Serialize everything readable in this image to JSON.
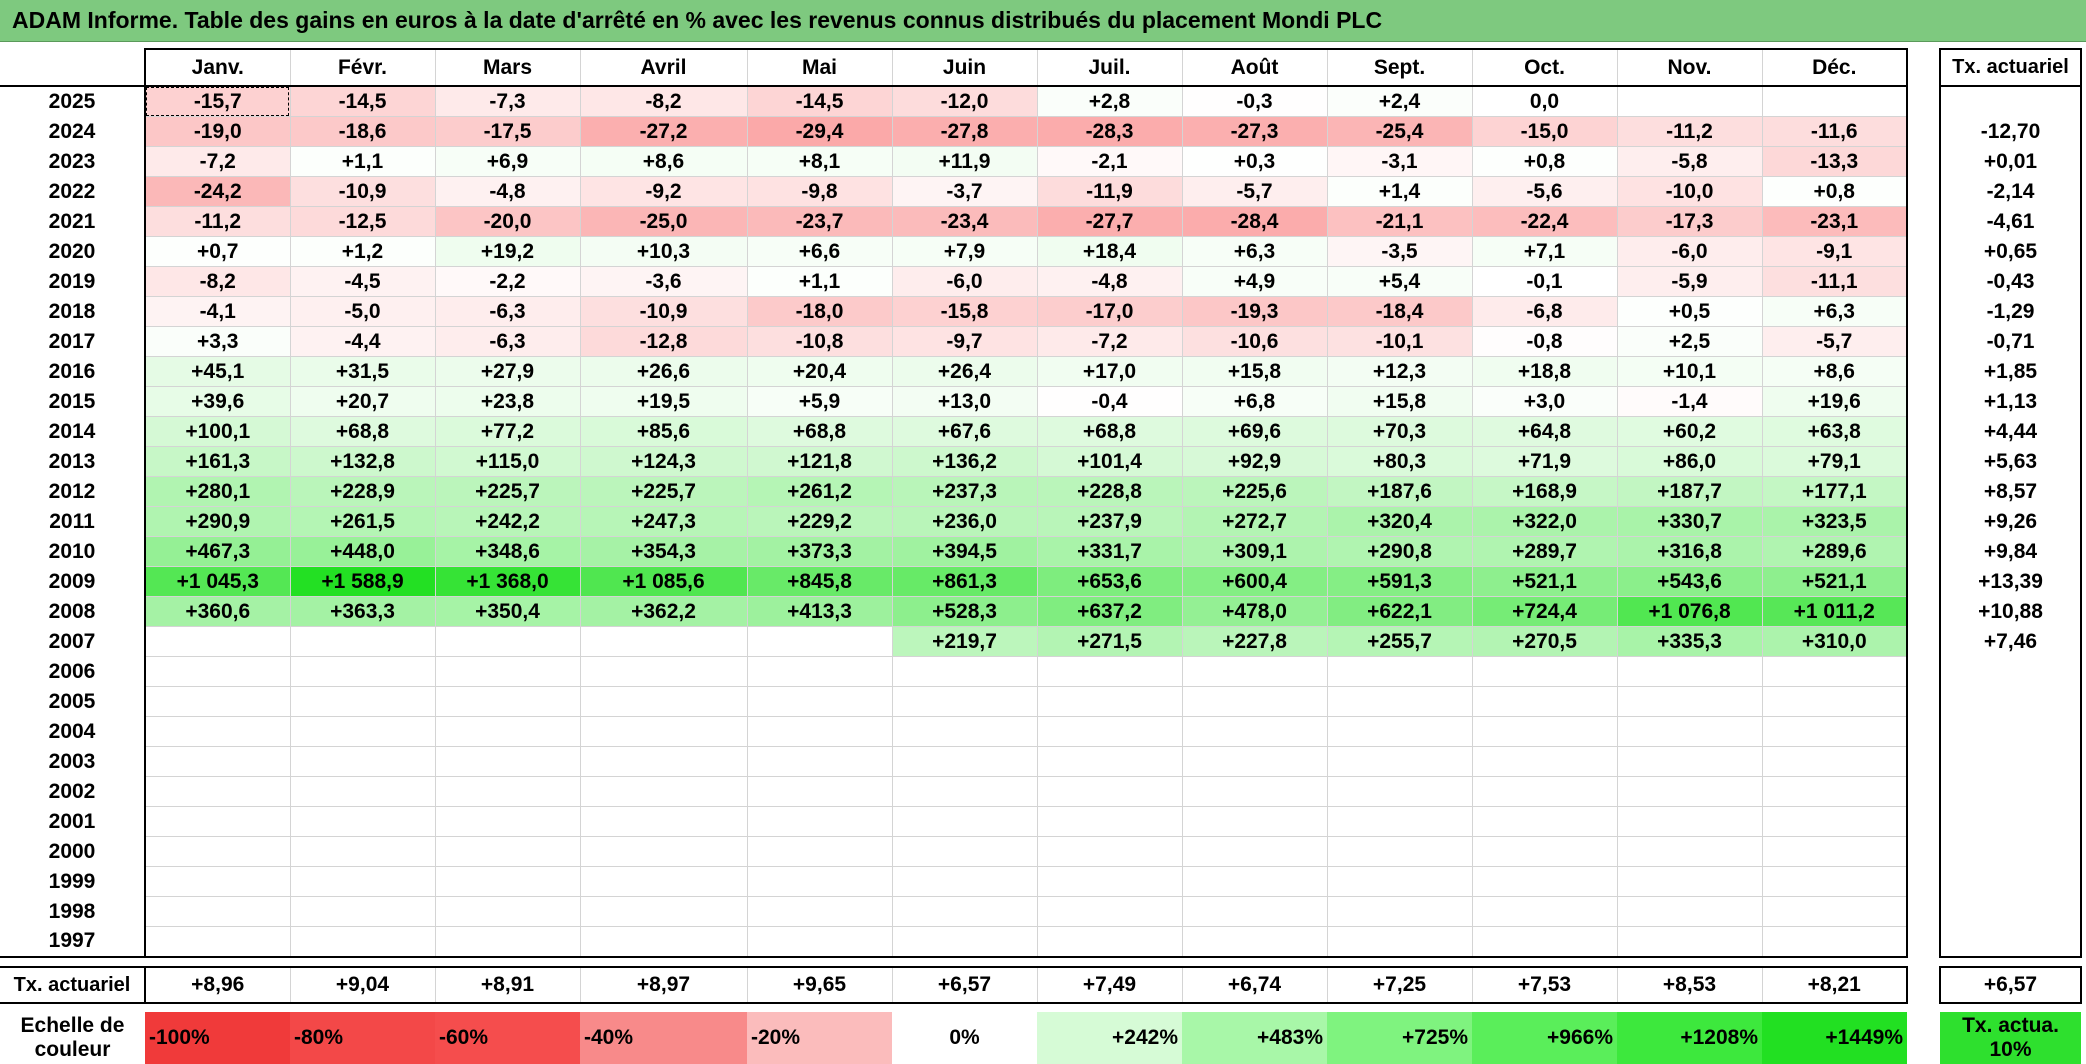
{
  "title": "ADAM Informe. Table des gains en euros à la date d'arrêté en % avec les revenus connus distribués du placement Mondi PLC",
  "months": [
    "Janv.",
    "Févr.",
    "Mars",
    "Avril",
    "Mai",
    "Juin",
    "Juil.",
    "Août",
    "Sept.",
    "Oct.",
    "Nov.",
    "Déc."
  ],
  "annual_header": "Tx. actuariel",
  "rows": [
    {
      "year": "2025",
      "cells": [
        "-15,7",
        "-14,5",
        "-7,3",
        "-8,2",
        "-14,5",
        "-12,0",
        "+2,8",
        "-0,3",
        "+2,4",
        "0,0",
        "",
        ""
      ],
      "annual": ""
    },
    {
      "year": "2024",
      "cells": [
        "-19,0",
        "-18,6",
        "-17,5",
        "-27,2",
        "-29,4",
        "-27,8",
        "-28,3",
        "-27,3",
        "-25,4",
        "-15,0",
        "-11,2",
        "-11,6"
      ],
      "annual": "-12,70"
    },
    {
      "year": "2023",
      "cells": [
        "-7,2",
        "+1,1",
        "+6,9",
        "+8,6",
        "+8,1",
        "+11,9",
        "-2,1",
        "+0,3",
        "-3,1",
        "+0,8",
        "-5,8",
        "-13,3"
      ],
      "annual": "+0,01"
    },
    {
      "year": "2022",
      "cells": [
        "-24,2",
        "-10,9",
        "-4,8",
        "-9,2",
        "-9,8",
        "-3,7",
        "-11,9",
        "-5,7",
        "+1,4",
        "-5,6",
        "-10,0",
        "+0,8"
      ],
      "annual": "-2,14"
    },
    {
      "year": "2021",
      "cells": [
        "-11,2",
        "-12,5",
        "-20,0",
        "-25,0",
        "-23,7",
        "-23,4",
        "-27,7",
        "-28,4",
        "-21,1",
        "-22,4",
        "-17,3",
        "-23,1"
      ],
      "annual": "-4,61"
    },
    {
      "year": "2020",
      "cells": [
        "+0,7",
        "+1,2",
        "+19,2",
        "+10,3",
        "+6,6",
        "+7,9",
        "+18,4",
        "+6,3",
        "-3,5",
        "+7,1",
        "-6,0",
        "-9,1"
      ],
      "annual": "+0,65"
    },
    {
      "year": "2019",
      "cells": [
        "-8,2",
        "-4,5",
        "-2,2",
        "-3,6",
        "+1,1",
        "-6,0",
        "-4,8",
        "+4,9",
        "+5,4",
        "-0,1",
        "-5,9",
        "-11,1"
      ],
      "annual": "-0,43"
    },
    {
      "year": "2018",
      "cells": [
        "-4,1",
        "-5,0",
        "-6,3",
        "-10,9",
        "-18,0",
        "-15,8",
        "-17,0",
        "-19,3",
        "-18,4",
        "-6,8",
        "+0,5",
        "+6,3"
      ],
      "annual": "-1,29"
    },
    {
      "year": "2017",
      "cells": [
        "+3,3",
        "-4,4",
        "-6,3",
        "-12,8",
        "-10,8",
        "-9,7",
        "-7,2",
        "-10,6",
        "-10,1",
        "-0,8",
        "+2,5",
        "-5,7"
      ],
      "annual": "-0,71"
    },
    {
      "year": "2016",
      "cells": [
        "+45,1",
        "+31,5",
        "+27,9",
        "+26,6",
        "+20,4",
        "+26,4",
        "+17,0",
        "+15,8",
        "+12,3",
        "+18,8",
        "+10,1",
        "+8,6"
      ],
      "annual": "+1,85"
    },
    {
      "year": "2015",
      "cells": [
        "+39,6",
        "+20,7",
        "+23,8",
        "+19,5",
        "+5,9",
        "+13,0",
        "-0,4",
        "+6,8",
        "+15,8",
        "+3,0",
        "-1,4",
        "+19,6"
      ],
      "annual": "+1,13"
    },
    {
      "year": "2014",
      "cells": [
        "+100,1",
        "+68,8",
        "+77,2",
        "+85,6",
        "+68,8",
        "+67,6",
        "+68,8",
        "+69,6",
        "+70,3",
        "+64,8",
        "+60,2",
        "+63,8"
      ],
      "annual": "+4,44"
    },
    {
      "year": "2013",
      "cells": [
        "+161,3",
        "+132,8",
        "+115,0",
        "+124,3",
        "+121,8",
        "+136,2",
        "+101,4",
        "+92,9",
        "+80,3",
        "+71,9",
        "+86,0",
        "+79,1"
      ],
      "annual": "+5,63"
    },
    {
      "year": "2012",
      "cells": [
        "+280,1",
        "+228,9",
        "+225,7",
        "+225,7",
        "+261,2",
        "+237,3",
        "+228,8",
        "+225,6",
        "+187,6",
        "+168,9",
        "+187,7",
        "+177,1"
      ],
      "annual": "+8,57"
    },
    {
      "year": "2011",
      "cells": [
        "+290,9",
        "+261,5",
        "+242,2",
        "+247,3",
        "+229,2",
        "+236,0",
        "+237,9",
        "+272,7",
        "+320,4",
        "+322,0",
        "+330,7",
        "+323,5"
      ],
      "annual": "+9,26"
    },
    {
      "year": "2010",
      "cells": [
        "+467,3",
        "+448,0",
        "+348,6",
        "+354,3",
        "+373,3",
        "+394,5",
        "+331,7",
        "+309,1",
        "+290,8",
        "+289,7",
        "+316,8",
        "+289,6"
      ],
      "annual": "+9,84"
    },
    {
      "year": "2009",
      "cells": [
        "+1 045,3",
        "+1 588,9",
        "+1 368,0",
        "+1 085,6",
        "+845,8",
        "+861,3",
        "+653,6",
        "+600,4",
        "+591,3",
        "+521,1",
        "+543,6",
        "+521,1"
      ],
      "annual": "+13,39"
    },
    {
      "year": "2008",
      "cells": [
        "+360,6",
        "+363,3",
        "+350,4",
        "+362,2",
        "+413,3",
        "+528,3",
        "+637,2",
        "+478,0",
        "+622,1",
        "+724,4",
        "+1 076,8",
        "+1 011,2"
      ],
      "annual": "+10,88"
    },
    {
      "year": "2007",
      "cells": [
        "",
        "",
        "",
        "",
        "",
        "+219,7",
        "+271,5",
        "+227,8",
        "+255,7",
        "+270,5",
        "+335,3",
        "+310,0"
      ],
      "annual": "+7,46"
    },
    {
      "year": "2006",
      "cells": [
        "",
        "",
        "",
        "",
        "",
        "",
        "",
        "",
        "",
        "",
        "",
        ""
      ],
      "annual": ""
    },
    {
      "year": "2005",
      "cells": [
        "",
        "",
        "",
        "",
        "",
        "",
        "",
        "",
        "",
        "",
        "",
        ""
      ],
      "annual": ""
    },
    {
      "year": "2004",
      "cells": [
        "",
        "",
        "",
        "",
        "",
        "",
        "",
        "",
        "",
        "",
        "",
        ""
      ],
      "annual": ""
    },
    {
      "year": "2003",
      "cells": [
        "",
        "",
        "",
        "",
        "",
        "",
        "",
        "",
        "",
        "",
        "",
        ""
      ],
      "annual": ""
    },
    {
      "year": "2002",
      "cells": [
        "",
        "",
        "",
        "",
        "",
        "",
        "",
        "",
        "",
        "",
        "",
        ""
      ],
      "annual": ""
    },
    {
      "year": "2001",
      "cells": [
        "",
        "",
        "",
        "",
        "",
        "",
        "",
        "",
        "",
        "",
        "",
        ""
      ],
      "annual": ""
    },
    {
      "year": "2000",
      "cells": [
        "",
        "",
        "",
        "",
        "",
        "",
        "",
        "",
        "",
        "",
        "",
        ""
      ],
      "annual": ""
    },
    {
      "year": "1999",
      "cells": [
        "",
        "",
        "",
        "",
        "",
        "",
        "",
        "",
        "",
        "",
        "",
        ""
      ],
      "annual": ""
    },
    {
      "year": "1998",
      "cells": [
        "",
        "",
        "",
        "",
        "",
        "",
        "",
        "",
        "",
        "",
        "",
        ""
      ],
      "annual": ""
    },
    {
      "year": "1997",
      "cells": [
        "",
        "",
        "",
        "",
        "",
        "",
        "",
        "",
        "",
        "",
        "",
        ""
      ],
      "annual": ""
    }
  ],
  "totals": {
    "label": "Tx. actuariel",
    "cells": [
      "+8,96",
      "+9,04",
      "+8,91",
      "+8,97",
      "+9,65",
      "+6,57",
      "+7,49",
      "+6,74",
      "+7,25",
      "+7,53",
      "+8,53",
      "+8,21"
    ],
    "annual": "+6,57"
  },
  "scale": {
    "label": "Echelle de couleur",
    "items": [
      {
        "text": "-100%",
        "color": "#f03a3a"
      },
      {
        "text": "-80%",
        "color": "#f34848"
      },
      {
        "text": "-60%",
        "color": "#f54d4d"
      },
      {
        "text": "-40%",
        "color": "#f88a8a"
      },
      {
        "text": "-20%",
        "color": "#fbbcbc"
      },
      {
        "text": "0%",
        "color": "#ffffff"
      },
      {
        "text": "+242%",
        "color": "#d6fbd6"
      },
      {
        "text": "+483%",
        "color": "#a8f7a8"
      },
      {
        "text": "+725%",
        "color": "#7ff37f"
      },
      {
        "text": "+966%",
        "color": "#5aee5a"
      },
      {
        "text": "+1208%",
        "color": "#3de83d"
      },
      {
        "text": "+1449%",
        "color": "#22e022"
      }
    ],
    "annual_label": "Tx. actua. 10%",
    "annual_color": "#2ee02e"
  }
}
